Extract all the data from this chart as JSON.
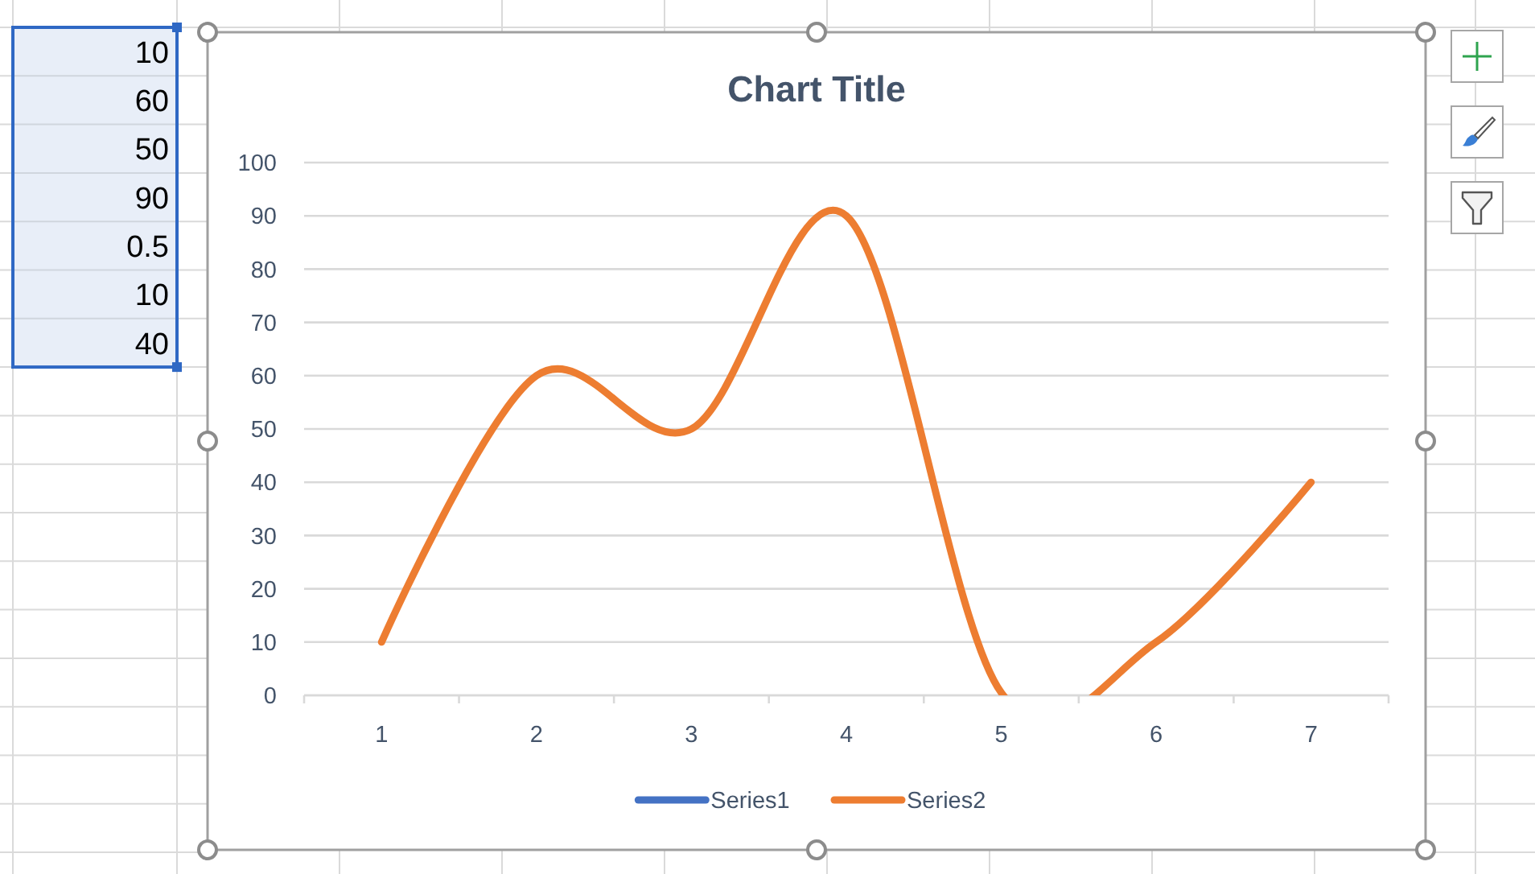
{
  "chart_data": {
    "type": "line",
    "title": "Chart Title",
    "categories": [
      "1",
      "2",
      "3",
      "4",
      "5",
      "6",
      "7"
    ],
    "series": [
      {
        "name": "Series1",
        "color": "#4472c4",
        "values": [
          null,
          null,
          null,
          null,
          null,
          null,
          null
        ]
      },
      {
        "name": "Series2",
        "color": "#ed7d31",
        "values": [
          10,
          60,
          50,
          90,
          0.5,
          10,
          40
        ]
      }
    ],
    "ylim": [
      0,
      100
    ],
    "yticks": [
      0,
      10,
      20,
      30,
      40,
      50,
      60,
      70,
      80,
      90,
      100
    ],
    "grid": "y",
    "legend": "bottom",
    "marker": "none",
    "line_style": "solid",
    "annotations": [
      "10",
      "60",
      "50",
      "90",
      "0.5",
      "10",
      "40"
    ]
  }
}
